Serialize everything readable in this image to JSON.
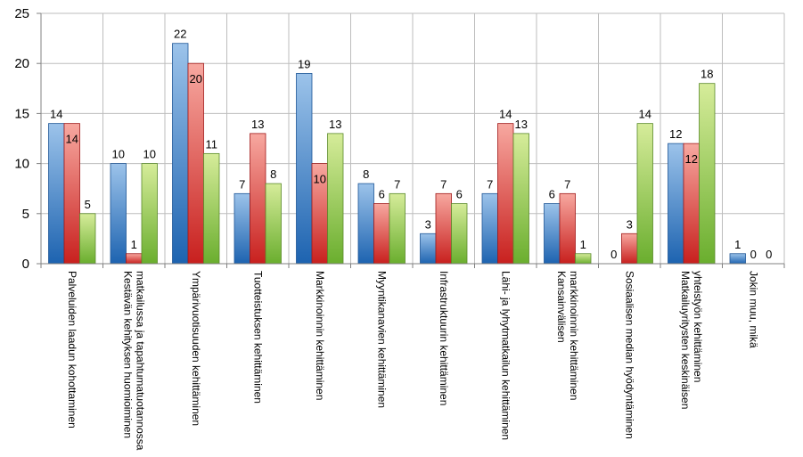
{
  "chart_data": {
    "type": "bar",
    "title": "",
    "xlabel": "",
    "ylabel": "",
    "ylim": [
      0,
      25
    ],
    "yticks": [
      0,
      5,
      10,
      15,
      20,
      25
    ],
    "grid": true,
    "legend": "none",
    "categories": [
      [
        "Palveluiden laadun kohottaminen"
      ],
      [
        "Kestävän kehityksen huomioiminen",
        "matkailussa ja tapahtumatuotannossa"
      ],
      [
        "Ympärivuotisuuden kehittäminen"
      ],
      [
        "Tuotteistuksen kehittäminen"
      ],
      [
        "Markkinoinnin kehittäminen"
      ],
      [
        "Myyntikanavien kehittäminen"
      ],
      [
        "Infrastruktuurin kehittäminen"
      ],
      [
        "Lähi- ja lyhytmatkailun kehittäminen"
      ],
      [
        "Kansainvälisen",
        "markkinoinnin kehittäminen"
      ],
      [
        "Sosiaalisen median hyödyntäminen"
      ],
      [
        "Matkailuyritysten keskinäisen",
        "yhteistyön kehittäminen"
      ],
      [
        "Jokin muu, mikä"
      ]
    ],
    "series": [
      {
        "values": [
          14,
          10,
          22,
          7,
          19,
          8,
          3,
          7,
          6,
          0,
          12,
          1
        ],
        "color": "#3f7fc3"
      },
      {
        "values": [
          14,
          1,
          20,
          13,
          10,
          6,
          7,
          14,
          7,
          3,
          12,
          0
        ],
        "color": "#e04848"
      },
      {
        "values": [
          5,
          10,
          11,
          8,
          13,
          7,
          6,
          13,
          1,
          14,
          18,
          0
        ],
        "color": "#8fc34f"
      }
    ]
  }
}
